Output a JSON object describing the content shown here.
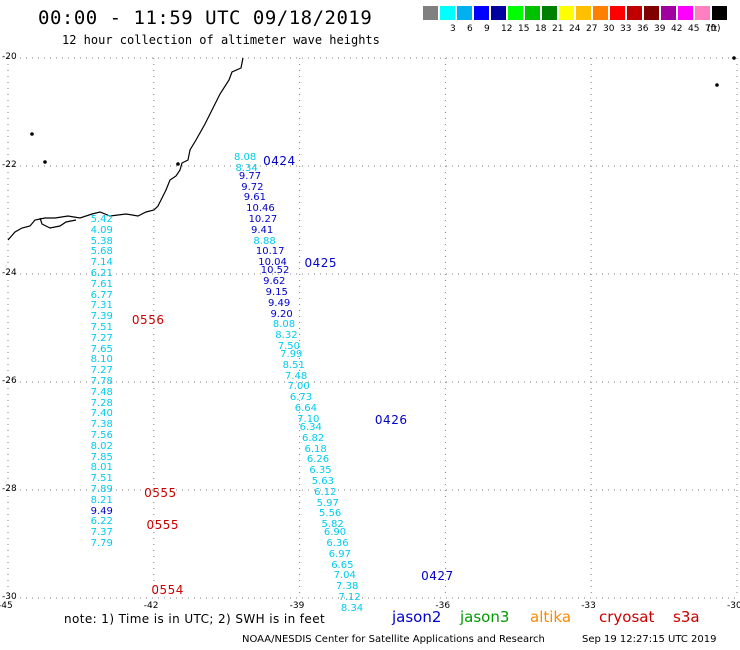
{
  "header": {
    "title": "00:00 - 11:59 UTC 09/18/2019",
    "subtitle": "12 hour collection of altimeter wave heights"
  },
  "legend": {
    "unit_label": "(ft)",
    "bins": [
      {
        "label": "",
        "color": "#808080"
      },
      {
        "label": "3",
        "color": "#00ffff"
      },
      {
        "label": "6",
        "color": "#00b0f0"
      },
      {
        "label": "9",
        "color": "#0000ff"
      },
      {
        "label": "12",
        "color": "#0000a0"
      },
      {
        "label": "15",
        "color": "#00ff00"
      },
      {
        "label": "18",
        "color": "#00c000"
      },
      {
        "label": "21",
        "color": "#008000"
      },
      {
        "label": "24",
        "color": "#ffff00"
      },
      {
        "label": "27",
        "color": "#ffc000"
      },
      {
        "label": "30",
        "color": "#ff8000"
      },
      {
        "label": "33",
        "color": "#ff0000"
      },
      {
        "label": "36",
        "color": "#c00000"
      },
      {
        "label": "39",
        "color": "#800000"
      },
      {
        "label": "42",
        "color": "#a000a0"
      },
      {
        "label": "45",
        "color": "#ff00ff"
      },
      {
        "label": "70",
        "color": "#ff80c0"
      },
      {
        "label": "",
        "color": "#000000"
      }
    ]
  },
  "colors": {
    "level_3_6": "#00ccee",
    "level_9_12": "#0000cc",
    "jason2": "#0000cc",
    "jason3": "#009900",
    "altika": "#ff8800",
    "cryosat": "#cc0000",
    "s3a": "#cc0000",
    "coastline": "#000000",
    "grid": "#808080"
  },
  "map": {
    "lat_range": [
      -30,
      -20
    ],
    "lon_range": [
      -45,
      -30
    ],
    "lat_ticks": [
      "-20",
      "-22",
      "-24",
      "-26",
      "-28",
      "-30"
    ],
    "lon_ticks": [
      "-45",
      "-42",
      "-39",
      "-36",
      "-33",
      "-30"
    ]
  },
  "chart_data": {
    "type": "scatter",
    "xlabel": "",
    "ylabel": "",
    "xlim": [
      -45,
      -30
    ],
    "ylim": [
      -30,
      -20
    ],
    "unit": "ft",
    "series": [
      {
        "name": "jason2",
        "points": [
          {
            "lon": -40.35,
            "lat": -21.85,
            "swh": "8.08"
          },
          {
            "lon": -40.32,
            "lat": -22.05,
            "swh": "8.34"
          },
          {
            "lon": -40.25,
            "lat": -22.2,
            "swh": "9.77"
          },
          {
            "lon": -40.2,
            "lat": -22.4,
            "swh": "9.72"
          },
          {
            "lon": -40.15,
            "lat": -22.6,
            "swh": "9.61"
          },
          {
            "lon": -40.1,
            "lat": -22.8,
            "swh": "10.46"
          },
          {
            "lon": -40.05,
            "lat": -23.0,
            "swh": "10.27"
          },
          {
            "lon": -40.0,
            "lat": -23.2,
            "swh": "9.41"
          },
          {
            "lon": -39.95,
            "lat": -23.4,
            "swh": "8.88"
          },
          {
            "lon": -39.9,
            "lat": -23.6,
            "swh": "10.17"
          },
          {
            "lon": -39.85,
            "lat": -23.8,
            "swh": "10.04"
          },
          {
            "lon": -39.8,
            "lat": -23.95,
            "swh": "10.52"
          },
          {
            "lon": -39.75,
            "lat": -24.15,
            "swh": "9.62"
          },
          {
            "lon": -39.7,
            "lat": -24.35,
            "swh": "9.15"
          },
          {
            "lon": -39.65,
            "lat": -24.55,
            "swh": "9.49"
          },
          {
            "lon": -39.6,
            "lat": -24.75,
            "swh": "9.20"
          },
          {
            "lon": -39.55,
            "lat": -24.95,
            "swh": "8.08"
          },
          {
            "lon": -39.5,
            "lat": -25.15,
            "swh": "8.32"
          },
          {
            "lon": -39.45,
            "lat": -25.35,
            "swh": "7.50"
          },
          {
            "lon": -39.4,
            "lat": -25.5,
            "swh": "7.99"
          },
          {
            "lon": -39.35,
            "lat": -25.7,
            "swh": "8.51"
          },
          {
            "lon": -39.3,
            "lat": -25.9,
            "swh": "7.48"
          },
          {
            "lon": -39.25,
            "lat": -26.1,
            "swh": "7.00"
          },
          {
            "lon": -39.2,
            "lat": -26.3,
            "swh": "6.73"
          },
          {
            "lon": -39.1,
            "lat": -26.5,
            "swh": "6.64"
          },
          {
            "lon": -39.05,
            "lat": -26.7,
            "swh": "7.10"
          },
          {
            "lon": -39.0,
            "lat": -26.85,
            "swh": "6.34"
          },
          {
            "lon": -38.95,
            "lat": -27.05,
            "swh": "6.82"
          },
          {
            "lon": -38.9,
            "lat": -27.25,
            "swh": "6.18"
          },
          {
            "lon": -38.85,
            "lat": -27.45,
            "swh": "6.26"
          },
          {
            "lon": -38.8,
            "lat": -27.65,
            "swh": "6.35"
          },
          {
            "lon": -38.75,
            "lat": -27.85,
            "swh": "5.63"
          },
          {
            "lon": -38.7,
            "lat": -28.05,
            "swh": "6.12"
          },
          {
            "lon": -38.65,
            "lat": -28.25,
            "swh": "5.97"
          },
          {
            "lon": -38.6,
            "lat": -28.45,
            "swh": "5.56"
          },
          {
            "lon": -38.55,
            "lat": -28.65,
            "swh": "5.82"
          },
          {
            "lon": -38.5,
            "lat": -28.8,
            "swh": "6.90"
          },
          {
            "lon": -38.45,
            "lat": -29.0,
            "swh": "6.36"
          },
          {
            "lon": -38.4,
            "lat": -29.2,
            "swh": "6.97"
          },
          {
            "lon": -38.35,
            "lat": -29.4,
            "swh": "6.65"
          },
          {
            "lon": -38.3,
            "lat": -29.6,
            "swh": "7.04"
          },
          {
            "lon": -38.25,
            "lat": -29.8,
            "swh": "7.38"
          },
          {
            "lon": -38.2,
            "lat": -30.0,
            "swh": "7.12"
          },
          {
            "lon": -38.15,
            "lat": -30.2,
            "swh": "8.34"
          }
        ],
        "times": [
          {
            "lon": -39.75,
            "lat": -21.9,
            "time": "0424"
          },
          {
            "lon": -38.9,
            "lat": -23.8,
            "time": "0425"
          },
          {
            "lon": -37.45,
            "lat": -26.7,
            "time": "0426"
          },
          {
            "lon": -36.5,
            "lat": -29.6,
            "time": "0427"
          }
        ]
      },
      {
        "name": "cryosat",
        "points": [
          {
            "lon": -43.3,
            "lat": -23.0,
            "swh": "5.42"
          },
          {
            "lon": -43.3,
            "lat": -23.2,
            "swh": "4.09"
          },
          {
            "lon": -43.3,
            "lat": -23.4,
            "swh": "5.38"
          },
          {
            "lon": -43.3,
            "lat": -23.6,
            "swh": "5.68"
          },
          {
            "lon": -43.3,
            "lat": -23.8,
            "swh": "7.14"
          },
          {
            "lon": -43.3,
            "lat": -24.0,
            "swh": "6.21"
          },
          {
            "lon": -43.3,
            "lat": -24.2,
            "swh": "7.61"
          },
          {
            "lon": -43.3,
            "lat": -24.4,
            "swh": "6.77"
          },
          {
            "lon": -43.3,
            "lat": -24.6,
            "swh": "7.31"
          },
          {
            "lon": -43.3,
            "lat": -24.8,
            "swh": "7.39"
          },
          {
            "lon": -43.3,
            "lat": -25.0,
            "swh": "7.51"
          },
          {
            "lon": -43.3,
            "lat": -25.2,
            "swh": "7.27"
          },
          {
            "lon": -43.3,
            "lat": -25.4,
            "swh": "7.65"
          },
          {
            "lon": -43.3,
            "lat": -25.6,
            "swh": "8.10"
          },
          {
            "lon": -43.3,
            "lat": -25.8,
            "swh": "7.27"
          },
          {
            "lon": -43.3,
            "lat": -26.0,
            "swh": "7.78"
          },
          {
            "lon": -43.3,
            "lat": -26.2,
            "swh": "7.48"
          },
          {
            "lon": -43.3,
            "lat": -26.4,
            "swh": "7.28"
          },
          {
            "lon": -43.3,
            "lat": -26.6,
            "swh": "7.40"
          },
          {
            "lon": -43.3,
            "lat": -26.8,
            "swh": "7.38"
          },
          {
            "lon": -43.3,
            "lat": -27.0,
            "swh": "7.56"
          },
          {
            "lon": -43.3,
            "lat": -27.2,
            "swh": "8.02"
          },
          {
            "lon": -43.3,
            "lat": -27.4,
            "swh": "7.85"
          },
          {
            "lon": -43.3,
            "lat": -27.6,
            "swh": "8.01"
          },
          {
            "lon": -43.3,
            "lat": -27.8,
            "swh": "7.51"
          },
          {
            "lon": -43.3,
            "lat": -28.0,
            "swh": "7.89"
          },
          {
            "lon": -43.3,
            "lat": -28.2,
            "swh": "8.21"
          },
          {
            "lon": -43.3,
            "lat": -28.4,
            "swh": "9.49"
          },
          {
            "lon": -43.3,
            "lat": -28.6,
            "swh": "6.22"
          },
          {
            "lon": -43.3,
            "lat": -28.8,
            "swh": "7.37"
          },
          {
            "lon": -43.3,
            "lat": -29.0,
            "swh": "7.79"
          }
        ],
        "times": [
          {
            "lon": -42.45,
            "lat": -24.85,
            "time": "0556"
          },
          {
            "lon": -42.2,
            "lat": -28.05,
            "time": "0555"
          },
          {
            "lon": -42.15,
            "lat": -28.65,
            "time": "0555"
          },
          {
            "lon": -42.05,
            "lat": -29.85,
            "time": "0554"
          }
        ]
      }
    ]
  },
  "footer": {
    "note": "note: 1) Time is in UTC; 2) SWH is in feet",
    "satellites": [
      {
        "name": "jason2",
        "color": "#0000cc"
      },
      {
        "name": "jason3",
        "color": "#009900"
      },
      {
        "name": "altika",
        "color": "#ff8800"
      },
      {
        "name": "cryosat",
        "color": "#cc0000"
      },
      {
        "name": "s3a",
        "color": "#cc0000"
      }
    ],
    "credit": "NOAA/NESDIS Center for Satellite Applications and Research",
    "timestamp": "Sep 19 12:27:15 UTC 2019"
  }
}
